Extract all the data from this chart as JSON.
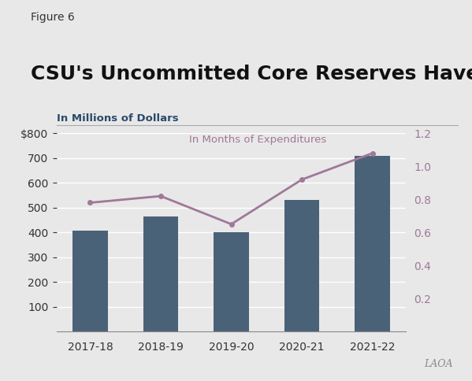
{
  "figure_label": "Figure 6",
  "title": "CSU's Uncommitted Core Reserves Have Increased",
  "ylabel_left": "In Millions of Dollars",
  "ylabel_right": "In Months of Expenditures",
  "categories": [
    "2017-18",
    "2018-19",
    "2019-20",
    "2020-21",
    "2021-22"
  ],
  "bar_values": [
    407,
    465,
    400,
    530,
    710
  ],
  "line_values": [
    0.78,
    0.82,
    0.65,
    0.92,
    1.08
  ],
  "bar_color": "#4a6278",
  "line_color": "#a07898",
  "background_color": "#e8e8e8",
  "ylim_left": [
    0,
    800
  ],
  "ylim_right": [
    0,
    1.2
  ],
  "yticks_left": [
    100,
    200,
    300,
    400,
    500,
    600,
    700,
    800
  ],
  "yticks_right": [
    0.2,
    0.4,
    0.6,
    0.8,
    1.0,
    1.2
  ],
  "annotation_text": "In Months of Expenditures",
  "lao_watermark": "LAOA",
  "title_fontsize": 18,
  "figure_label_fontsize": 10,
  "tick_fontsize": 10,
  "annotation_fontsize": 9.5
}
